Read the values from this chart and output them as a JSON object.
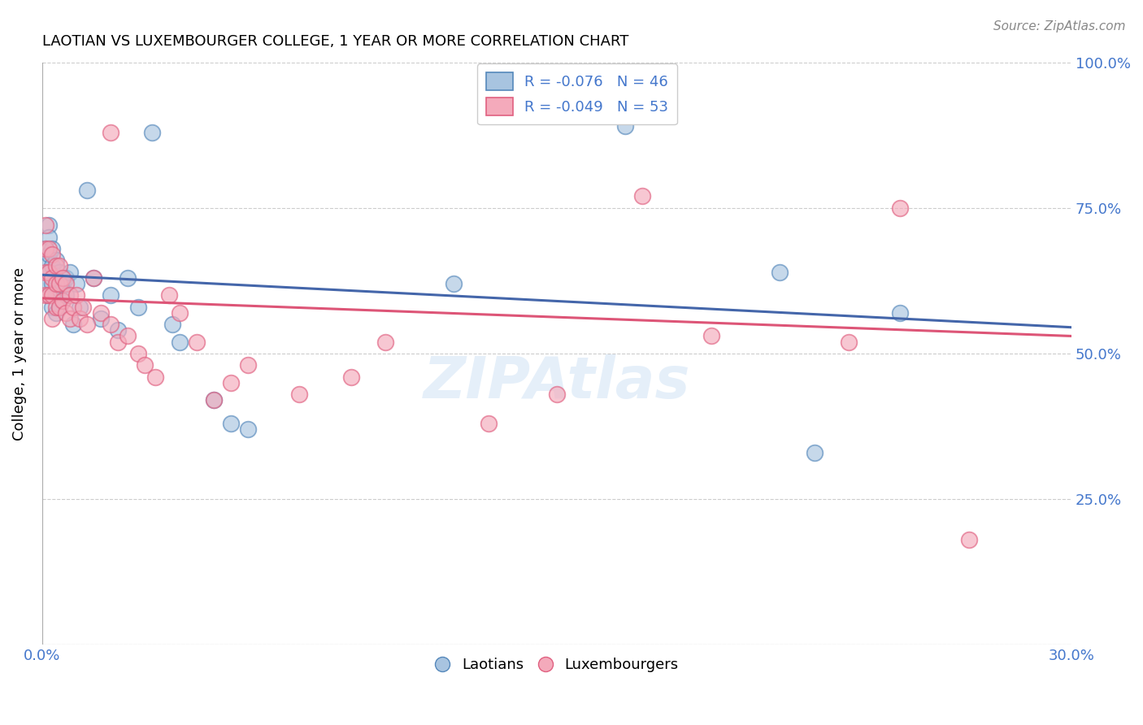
{
  "title": "LAOTIAN VS LUXEMBOURGER COLLEGE, 1 YEAR OR MORE CORRELATION CHART",
  "source": "Source: ZipAtlas.com",
  "ylabel": "College, 1 year or more",
  "xlim": [
    0.0,
    0.3
  ],
  "ylim": [
    0.0,
    1.0
  ],
  "blue_color": "#A8C4E0",
  "pink_color": "#F4AABB",
  "blue_edge_color": "#5588BB",
  "pink_edge_color": "#E06080",
  "blue_line_color": "#4466AA",
  "pink_line_color": "#DD5577",
  "legend_blue_r": "R = -0.076",
  "legend_blue_n": "N = 46",
  "legend_pink_r": "R = -0.049",
  "legend_pink_n": "N = 53",
  "watermark": "ZIPAtlas",
  "background_color": "#ffffff",
  "grid_color": "#cccccc",
  "label_color": "#4477CC",
  "blue_scatter_x": [
    0.001,
    0.001,
    0.001,
    0.002,
    0.002,
    0.002,
    0.002,
    0.002,
    0.003,
    0.003,
    0.003,
    0.003,
    0.004,
    0.004,
    0.004,
    0.004,
    0.005,
    0.005,
    0.005,
    0.006,
    0.006,
    0.007,
    0.007,
    0.008,
    0.009,
    0.01,
    0.011,
    0.013,
    0.015,
    0.017,
    0.02,
    0.022,
    0.025,
    0.028,
    0.032,
    0.038,
    0.04,
    0.05,
    0.055,
    0.06,
    0.12,
    0.155,
    0.17,
    0.215,
    0.225,
    0.25
  ],
  "blue_scatter_y": [
    0.68,
    0.65,
    0.62,
    0.72,
    0.7,
    0.67,
    0.64,
    0.6,
    0.68,
    0.65,
    0.62,
    0.58,
    0.66,
    0.63,
    0.6,
    0.57,
    0.64,
    0.61,
    0.58,
    0.62,
    0.59,
    0.63,
    0.6,
    0.64,
    0.55,
    0.62,
    0.58,
    0.78,
    0.63,
    0.56,
    0.6,
    0.54,
    0.63,
    0.58,
    0.88,
    0.55,
    0.52,
    0.42,
    0.38,
    0.37,
    0.62,
    0.91,
    0.89,
    0.64,
    0.33,
    0.57
  ],
  "pink_scatter_x": [
    0.001,
    0.001,
    0.001,
    0.001,
    0.002,
    0.002,
    0.002,
    0.003,
    0.003,
    0.003,
    0.003,
    0.004,
    0.004,
    0.004,
    0.005,
    0.005,
    0.005,
    0.006,
    0.006,
    0.007,
    0.007,
    0.008,
    0.008,
    0.009,
    0.01,
    0.011,
    0.012,
    0.013,
    0.015,
    0.017,
    0.02,
    0.02,
    0.022,
    0.025,
    0.028,
    0.03,
    0.033,
    0.037,
    0.04,
    0.045,
    0.05,
    0.055,
    0.06,
    0.075,
    0.09,
    0.1,
    0.13,
    0.15,
    0.175,
    0.195,
    0.235,
    0.25,
    0.27
  ],
  "pink_scatter_y": [
    0.72,
    0.68,
    0.64,
    0.6,
    0.68,
    0.64,
    0.6,
    0.67,
    0.63,
    0.6,
    0.56,
    0.65,
    0.62,
    0.58,
    0.65,
    0.62,
    0.58,
    0.63,
    0.59,
    0.62,
    0.57,
    0.6,
    0.56,
    0.58,
    0.6,
    0.56,
    0.58,
    0.55,
    0.63,
    0.57,
    0.88,
    0.55,
    0.52,
    0.53,
    0.5,
    0.48,
    0.46,
    0.6,
    0.57,
    0.52,
    0.42,
    0.45,
    0.48,
    0.43,
    0.46,
    0.52,
    0.38,
    0.43,
    0.77,
    0.53,
    0.52,
    0.75,
    0.18
  ]
}
